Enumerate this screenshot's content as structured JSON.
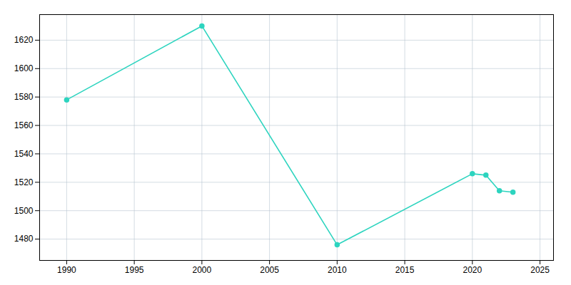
{
  "chart_data": {
    "type": "line",
    "x": [
      1990,
      2000,
      2010,
      2020,
      2021,
      2022,
      2023
    ],
    "values": [
      1578,
      1630,
      1476,
      1526,
      1525,
      1514,
      1513
    ],
    "color": "#2dd4bf",
    "marker": "circle",
    "xlim": [
      1988,
      2026
    ],
    "ylim": [
      1465,
      1638
    ],
    "xticks": [
      1990,
      1995,
      2000,
      2005,
      2010,
      2015,
      2020,
      2025
    ],
    "yticks": [
      1480,
      1500,
      1520,
      1540,
      1560,
      1580,
      1600,
      1620
    ],
    "grid": true
  }
}
